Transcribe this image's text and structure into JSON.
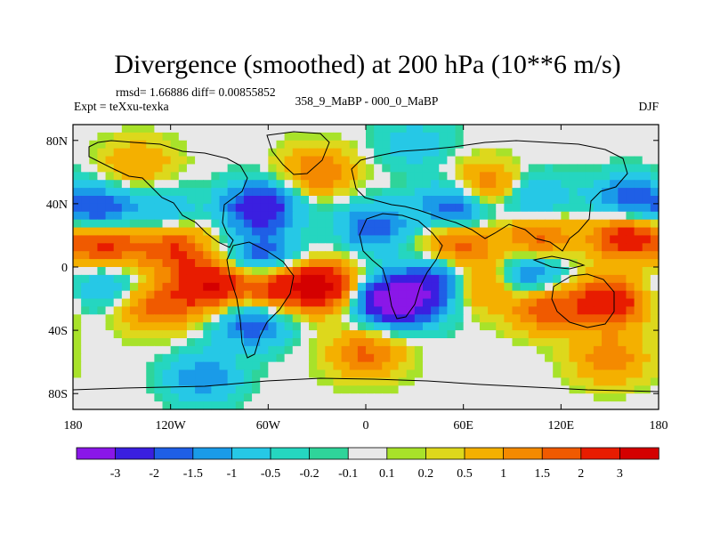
{
  "chart_data": {
    "type": "heatmap",
    "title": "Divergence (smoothed) at 200 hPa (10**6 m/s)",
    "stats_text": "rmsd= 1.66886 diff= 0.00855852",
    "experiment_text": "Expt = teXxu-texka",
    "difference_label": "358_9_MaBP - 000_0_MaBP",
    "season": "DJF",
    "x_ticks": [
      "180",
      "120W",
      "60W",
      "0",
      "60E",
      "120E",
      "180"
    ],
    "y_ticks": [
      "80N",
      "40N",
      "0",
      "40S",
      "80S"
    ],
    "xlim": [
      -180,
      180
    ],
    "ylim": [
      -90,
      90
    ],
    "colorbar": {
      "labels": [
        "-3",
        "-2",
        "-1.5",
        "-1",
        "-0.5",
        "-0.2",
        "-0.1",
        "0.1",
        "0.2",
        "0.5",
        "1",
        "1.5",
        "2",
        "3"
      ],
      "levels": [
        -3,
        -2,
        -1.5,
        -1,
        -0.5,
        -0.2,
        -0.1,
        0.1,
        0.2,
        0.5,
        1,
        1.5,
        2,
        3
      ],
      "colors": [
        "#8a17e8",
        "#3a1fe0",
        "#1f5fe6",
        "#1a9be8",
        "#26c8e6",
        "#25d6c0",
        "#2fd49a",
        "#e8e8e8",
        "#a8e22a",
        "#ddd81c",
        "#f4b000",
        "#f48a00",
        "#f05a00",
        "#e81c00",
        "#d40000"
      ]
    },
    "field_features": [
      {
        "lon": -165,
        "lat": 35,
        "value": -2.2
      },
      {
        "lon": -160,
        "lat": 15,
        "value": 2.3
      },
      {
        "lon": -125,
        "lat": 35,
        "value": -1.0
      },
      {
        "lon": -118,
        "lat": 12,
        "value": 2.0
      },
      {
        "lon": -160,
        "lat": -12,
        "value": -1.2
      },
      {
        "lon": -95,
        "lat": -12,
        "value": 3.0
      },
      {
        "lon": -130,
        "lat": -25,
        "value": 1.8
      },
      {
        "lon": -65,
        "lat": 38,
        "value": -2.8
      },
      {
        "lon": -62,
        "lat": 5,
        "value": -2.2
      },
      {
        "lon": -70,
        "lat": -35,
        "value": -2.0
      },
      {
        "lon": -55,
        "lat": -12,
        "value": 2.5
      },
      {
        "lon": -25,
        "lat": -12,
        "value": 3.2
      },
      {
        "lon": 5,
        "lat": 25,
        "value": -1.8
      },
      {
        "lon": 0,
        "lat": -55,
        "value": 1.6
      },
      {
        "lon": 10,
        "lat": -20,
        "value": -2.6
      },
      {
        "lon": 28,
        "lat": -22,
        "value": -2.3
      },
      {
        "lon": 55,
        "lat": 38,
        "value": -2.3
      },
      {
        "lon": 55,
        "lat": 14,
        "value": 2.0
      },
      {
        "lon": 48,
        "lat": -6,
        "value": -2.0
      },
      {
        "lon": 70,
        "lat": -10,
        "value": 1.8
      },
      {
        "lon": 75,
        "lat": 50,
        "value": 2.0
      },
      {
        "lon": 105,
        "lat": 18,
        "value": 1.8
      },
      {
        "lon": 100,
        "lat": 44,
        "value": -1.5
      },
      {
        "lon": 100,
        "lat": -5,
        "value": -2.0
      },
      {
        "lon": 110,
        "lat": -25,
        "value": 2.0
      },
      {
        "lon": 150,
        "lat": -22,
        "value": 2.8
      },
      {
        "lon": 160,
        "lat": 20,
        "value": 2.6
      },
      {
        "lon": 160,
        "lat": 42,
        "value": -1.8
      },
      {
        "lon": 150,
        "lat": -58,
        "value": 1.4
      },
      {
        "lon": -30,
        "lat": 60,
        "value": 1.5
      },
      {
        "lon": -100,
        "lat": -70,
        "value": -1.4
      },
      {
        "lon": 30,
        "lat": 78,
        "value": -0.8
      },
      {
        "lon": -140,
        "lat": 65,
        "value": 1.0
      }
    ]
  }
}
